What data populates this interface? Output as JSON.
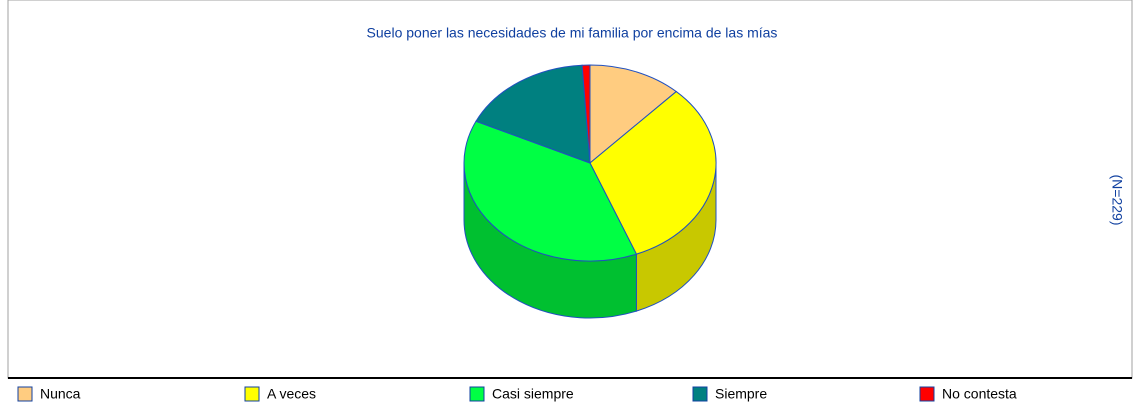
{
  "chart_data": {
    "type": "pie",
    "title": "Suelo poner las necesidades de mi familia por encima de las mías",
    "side_label": "(N=229)",
    "categories": [
      "Nunca",
      "A veces",
      "Casi siempre",
      "Siempre",
      "No contesta"
    ],
    "values": [
      12,
      32,
      38,
      17,
      1
    ],
    "colors": [
      "#ffcc80",
      "#ffff00",
      "#00ff44",
      "#008080",
      "#ff0000"
    ],
    "side_colors": [
      "#c8a060",
      "#c8c800",
      "#00c030",
      "#006060",
      "#c00000"
    ]
  }
}
